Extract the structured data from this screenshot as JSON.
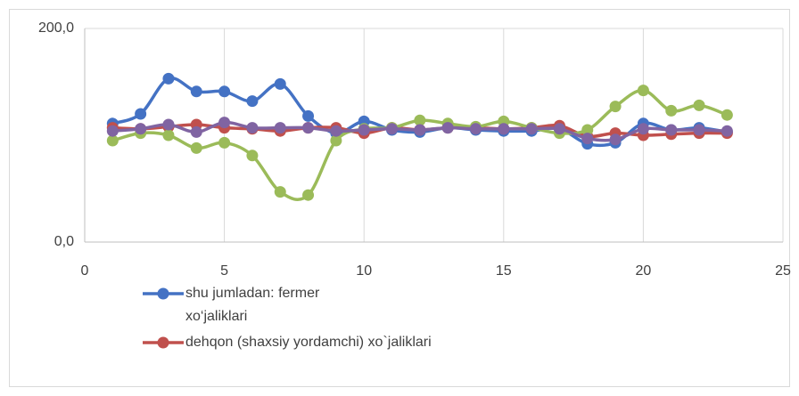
{
  "chart_data": {
    "type": "line",
    "x": [
      1,
      2,
      3,
      4,
      5,
      6,
      7,
      8,
      9,
      10,
      11,
      12,
      13,
      14,
      15,
      16,
      17,
      18,
      19,
      20,
      21,
      22,
      23
    ],
    "series": [
      {
        "name": "shu jumladan: fermer xo‘jaliklari",
        "color": "#4472c4",
        "values": [
          111,
          120,
          153,
          141,
          141,
          132,
          148,
          118,
          102,
          113,
          105,
          103,
          107,
          105,
          104,
          104,
          106,
          92,
          93,
          111,
          105,
          107,
          103
        ]
      },
      {
        "name": "dehqon (shaxsiy yordamchi) xo`jaliklari",
        "color": "#c0504d",
        "values": [
          107,
          106,
          108,
          110,
          107,
          106,
          104,
          107,
          107,
          102,
          107,
          105,
          107,
          107,
          106,
          107,
          109,
          99,
          102,
          100,
          101,
          102,
          102
        ]
      },
      {
        "color": "#9bbb59",
        "values": [
          95,
          102,
          100,
          88,
          93,
          81,
          47,
          44,
          95,
          106,
          107,
          114,
          111,
          108,
          113,
          107,
          102,
          105,
          127,
          142,
          123,
          128,
          119
        ]
      },
      {
        "color": "#8064a2",
        "values": [
          104,
          106,
          110,
          103,
          112,
          107,
          107,
          107,
          104,
          105,
          106,
          105,
          107,
          106,
          106,
          106,
          106,
          97,
          96,
          106,
          105,
          105,
          104
        ]
      }
    ],
    "xlim": [
      0,
      25
    ],
    "xticks": [
      0,
      5,
      10,
      15,
      20,
      25
    ],
    "ylim": [
      0,
      200
    ],
    "yticks": [
      {
        "value": 0,
        "label": "0,0"
      },
      {
        "value": 200,
        "label": "200,0"
      }
    ],
    "grid": true,
    "smooth": true
  }
}
